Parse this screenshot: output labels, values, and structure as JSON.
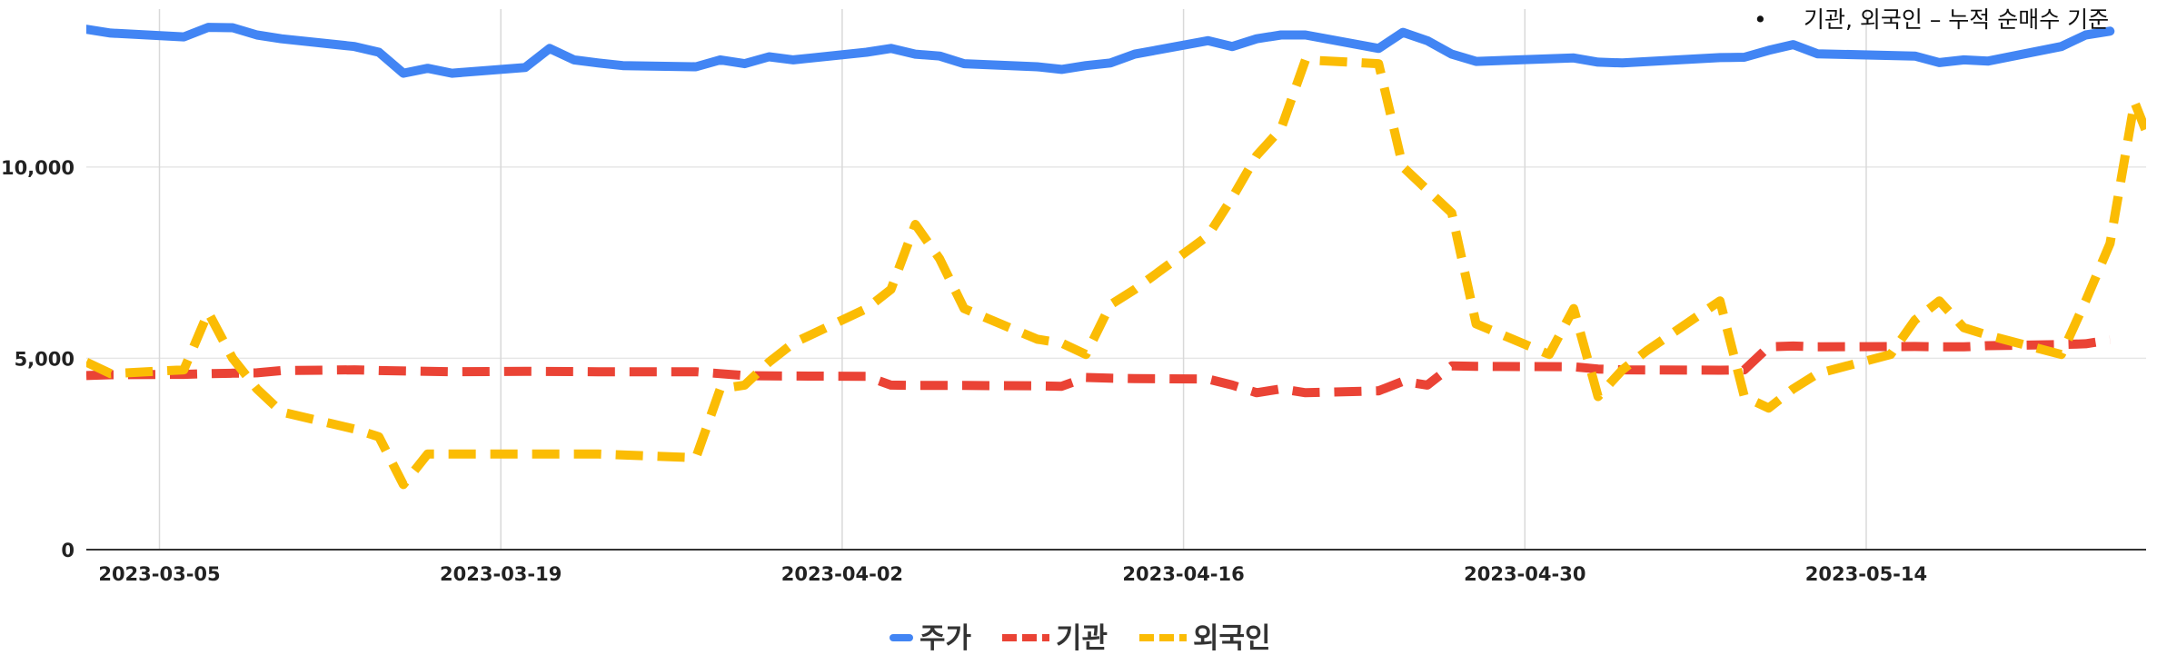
{
  "note": {
    "bullet": "•",
    "text": "기관, 외국인 – 누적 순매수 기준"
  },
  "chart_data": {
    "type": "line",
    "title": "",
    "xlabel": "",
    "ylabel": "",
    "x_ticks": [
      "2023-03-05",
      "2023-03-19",
      "2023-04-02",
      "2023-04-16",
      "2023-04-30",
      "2023-05-14"
    ],
    "y_ticks": [
      0,
      5000,
      10000
    ],
    "y_tick_labels": [
      "0",
      "5,000",
      "10,000"
    ],
    "xlim": [
      "2023-03-02",
      "2023-05-24"
    ],
    "ylim": [
      0,
      13700
    ],
    "grid": true,
    "legend_position": "bottom",
    "series": [
      {
        "name": "주가",
        "color": "#4285F4",
        "dash": "solid",
        "points": [
          [
            "2023-03-02",
            13600
          ],
          [
            "2023-03-03",
            13500
          ],
          [
            "2023-03-06",
            13400
          ],
          [
            "2023-03-07",
            13650
          ],
          [
            "2023-03-08",
            13640
          ],
          [
            "2023-03-09",
            13450
          ],
          [
            "2023-03-10",
            13350
          ],
          [
            "2023-03-13",
            13150
          ],
          [
            "2023-03-14",
            13000
          ],
          [
            "2023-03-15",
            12450
          ],
          [
            "2023-03-16",
            12580
          ],
          [
            "2023-03-17",
            12450
          ],
          [
            "2023-03-20",
            12600
          ],
          [
            "2023-03-21",
            13100
          ],
          [
            "2023-03-22",
            12800
          ],
          [
            "2023-03-23",
            12720
          ],
          [
            "2023-03-24",
            12650
          ],
          [
            "2023-03-27",
            12620
          ],
          [
            "2023-03-28",
            12800
          ],
          [
            "2023-03-29",
            12700
          ],
          [
            "2023-03-30",
            12880
          ],
          [
            "2023-03-31",
            12800
          ],
          [
            "2023-04-03",
            13000
          ],
          [
            "2023-04-04",
            13100
          ],
          [
            "2023-04-05",
            12950
          ],
          [
            "2023-04-06",
            12900
          ],
          [
            "2023-04-07",
            12700
          ],
          [
            "2023-04-10",
            12620
          ],
          [
            "2023-04-11",
            12550
          ],
          [
            "2023-04-12",
            12650
          ],
          [
            "2023-04-13",
            12720
          ],
          [
            "2023-04-14",
            12950
          ],
          [
            "2023-04-17",
            13300
          ],
          [
            "2023-04-18",
            13150
          ],
          [
            "2023-04-19",
            13350
          ],
          [
            "2023-04-20",
            13450
          ],
          [
            "2023-04-21",
            13450
          ],
          [
            "2023-04-24",
            13100
          ],
          [
            "2023-04-25",
            13520
          ],
          [
            "2023-04-26",
            13300
          ],
          [
            "2023-04-27",
            12950
          ],
          [
            "2023-04-28",
            12760
          ],
          [
            "2023-05-02",
            12850
          ],
          [
            "2023-05-03",
            12740
          ],
          [
            "2023-05-04",
            12720
          ],
          [
            "2023-05-08",
            12860
          ],
          [
            "2023-05-09",
            12870
          ],
          [
            "2023-05-10",
            13050
          ],
          [
            "2023-05-11",
            13200
          ],
          [
            "2023-05-12",
            12960
          ],
          [
            "2023-05-16",
            12900
          ],
          [
            "2023-05-17",
            12730
          ],
          [
            "2023-05-18",
            12800
          ],
          [
            "2023-05-19",
            12770
          ],
          [
            "2023-05-22",
            13150
          ],
          [
            "2023-05-23",
            13450
          ],
          [
            "2023-05-24",
            13550
          ]
        ]
      },
      {
        "name": "기관",
        "color": "#EA4335",
        "dash": "dashed",
        "points": [
          [
            "2023-03-02",
            4550
          ],
          [
            "2023-03-03",
            4570
          ],
          [
            "2023-03-06",
            4580
          ],
          [
            "2023-03-07",
            4600
          ],
          [
            "2023-03-08",
            4610
          ],
          [
            "2023-03-09",
            4620
          ],
          [
            "2023-03-10",
            4680
          ],
          [
            "2023-03-13",
            4700
          ],
          [
            "2023-03-14",
            4680
          ],
          [
            "2023-03-17",
            4650
          ],
          [
            "2023-03-20",
            4660
          ],
          [
            "2023-03-23",
            4650
          ],
          [
            "2023-03-27",
            4650
          ],
          [
            "2023-03-28",
            4600
          ],
          [
            "2023-03-29",
            4550
          ],
          [
            "2023-03-30",
            4540
          ],
          [
            "2023-04-03",
            4530
          ],
          [
            "2023-04-04",
            4300
          ],
          [
            "2023-04-05",
            4290
          ],
          [
            "2023-04-07",
            4290
          ],
          [
            "2023-04-10",
            4280
          ],
          [
            "2023-04-11",
            4270
          ],
          [
            "2023-04-12",
            4500
          ],
          [
            "2023-04-13",
            4480
          ],
          [
            "2023-04-14",
            4470
          ],
          [
            "2023-04-17",
            4460
          ],
          [
            "2023-04-18",
            4300
          ],
          [
            "2023-04-19",
            4100
          ],
          [
            "2023-04-20",
            4200
          ],
          [
            "2023-04-21",
            4100
          ],
          [
            "2023-04-24",
            4150
          ],
          [
            "2023-04-25",
            4400
          ],
          [
            "2023-04-26",
            4300
          ],
          [
            "2023-04-27",
            4800
          ],
          [
            "2023-04-28",
            4790
          ],
          [
            "2023-05-02",
            4780
          ],
          [
            "2023-05-03",
            4720
          ],
          [
            "2023-05-04",
            4700
          ],
          [
            "2023-05-08",
            4690
          ],
          [
            "2023-05-09",
            4700
          ],
          [
            "2023-05-10",
            5300
          ],
          [
            "2023-05-11",
            5320
          ],
          [
            "2023-05-12",
            5300
          ],
          [
            "2023-05-16",
            5310
          ],
          [
            "2023-05-17",
            5300
          ],
          [
            "2023-05-18",
            5300
          ],
          [
            "2023-05-19",
            5330
          ],
          [
            "2023-05-22",
            5360
          ],
          [
            "2023-05-23",
            5380
          ],
          [
            "2023-05-24",
            5480
          ]
        ]
      },
      {
        "name": "외국인",
        "color": "#FBBC04",
        "dash": "dashed",
        "points": [
          [
            "2023-03-02",
            4900
          ],
          [
            "2023-03-03",
            4600
          ],
          [
            "2023-03-06",
            4700
          ],
          [
            "2023-03-07",
            6200
          ],
          [
            "2023-03-08",
            5000
          ],
          [
            "2023-03-09",
            4200
          ],
          [
            "2023-03-10",
            3600
          ],
          [
            "2023-03-13",
            3150
          ],
          [
            "2023-03-14",
            2950
          ],
          [
            "2023-03-15",
            1700
          ],
          [
            "2023-03-16",
            2500
          ],
          [
            "2023-03-17",
            2500
          ],
          [
            "2023-03-20",
            2500
          ],
          [
            "2023-03-23",
            2500
          ],
          [
            "2023-03-27",
            2400
          ],
          [
            "2023-03-28",
            4200
          ],
          [
            "2023-03-29",
            4300
          ],
          [
            "2023-03-30",
            4900
          ],
          [
            "2023-03-31",
            5400
          ],
          [
            "2023-04-03",
            6300
          ],
          [
            "2023-04-04",
            6800
          ],
          [
            "2023-04-05",
            8500
          ],
          [
            "2023-04-06",
            7600
          ],
          [
            "2023-04-07",
            6300
          ],
          [
            "2023-04-10",
            5500
          ],
          [
            "2023-04-11",
            5400
          ],
          [
            "2023-04-12",
            5100
          ],
          [
            "2023-04-13",
            6400
          ],
          [
            "2023-04-14",
            6800
          ],
          [
            "2023-04-17",
            8200
          ],
          [
            "2023-04-18",
            9200
          ],
          [
            "2023-04-19",
            10300
          ],
          [
            "2023-04-20",
            11000
          ],
          [
            "2023-04-21",
            12800
          ],
          [
            "2023-04-24",
            12700
          ],
          [
            "2023-04-25",
            10000
          ],
          [
            "2023-04-26",
            9400
          ],
          [
            "2023-04-27",
            8800
          ],
          [
            "2023-04-28",
            5900
          ],
          [
            "2023-05-01",
            5100
          ],
          [
            "2023-05-02",
            6300
          ],
          [
            "2023-05-03",
            4000
          ],
          [
            "2023-05-04",
            4700
          ],
          [
            "2023-05-05",
            5200
          ],
          [
            "2023-05-08",
            6500
          ],
          [
            "2023-05-09",
            4000
          ],
          [
            "2023-05-10",
            3700
          ],
          [
            "2023-05-11",
            4200
          ],
          [
            "2023-05-12",
            4600
          ],
          [
            "2023-05-15",
            5100
          ],
          [
            "2023-05-16",
            6000
          ],
          [
            "2023-05-17",
            6500
          ],
          [
            "2023-05-18",
            5800
          ],
          [
            "2023-05-19",
            5600
          ],
          [
            "2023-05-22",
            5100
          ],
          [
            "2023-05-23",
            6500
          ],
          [
            "2023-05-24",
            8000
          ],
          [
            "2023-05-25",
            11700
          ],
          [
            "2023-05-26",
            10100
          ]
        ]
      }
    ]
  }
}
